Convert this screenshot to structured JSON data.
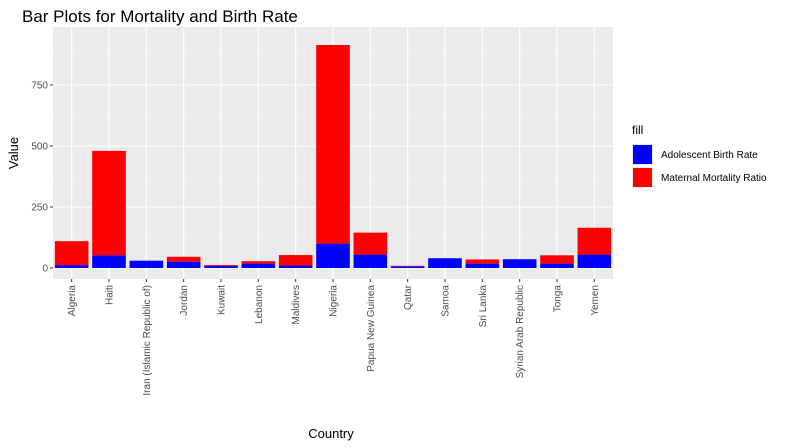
{
  "chart_data": {
    "type": "bar",
    "stacked": true,
    "title": "Bar Plots for Mortality and Birth Rate",
    "xlabel": "Country",
    "ylabel": "Value",
    "ylim": [
      0,
      960
    ],
    "yticks": [
      0,
      250,
      500,
      750
    ],
    "grid": true,
    "legend_position": "right",
    "legend_title": "fill",
    "categories": [
      "Algeria",
      "Haiti",
      "Iran (Islamic Republic of)",
      "Jordan",
      "Kuwait",
      "Lebanon",
      "Maldives",
      "Nigeria",
      "Papua New Guinea",
      "Qatar",
      "Samoa",
      "Sri Lanka",
      "Syrian Arab Republic",
      "Tonga",
      "Yemen"
    ],
    "series": [
      {
        "name": "Adolescent Birth Rate",
        "color": "#0000ff",
        "values": [
          12,
          52,
          30,
          26,
          8,
          18,
          10,
          100,
          55,
          7,
          40,
          18,
          36,
          18,
          55
        ]
      },
      {
        "name": "Maternal Mortality Ratio",
        "color": "#ff0000",
        "values": [
          98,
          428,
          0,
          20,
          4,
          10,
          43,
          814,
          90,
          2,
          0,
          17,
          0,
          34,
          110
        ]
      }
    ]
  }
}
